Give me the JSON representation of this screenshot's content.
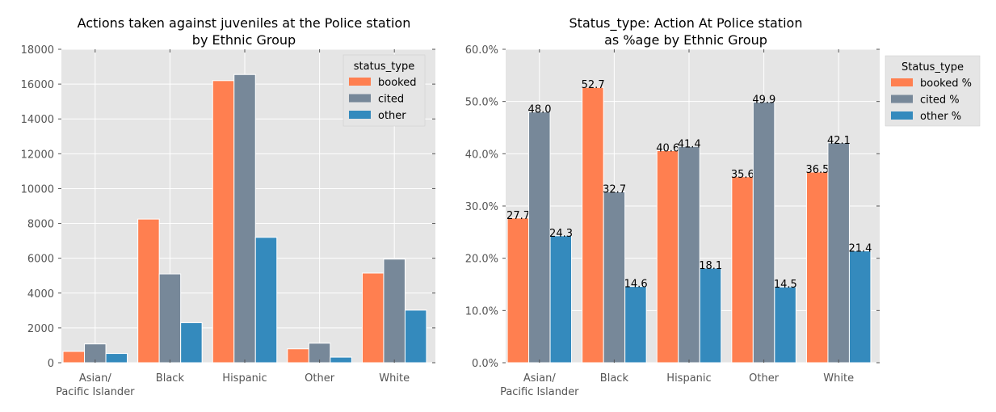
{
  "chart_data": [
    {
      "type": "bar",
      "title_lines": [
        "Actions taken against juveniles at the Police station",
        "by Ethnic Group"
      ],
      "categories": [
        "Asian/|Pacific Islander",
        "Black",
        "Hispanic",
        "Other",
        "White"
      ],
      "ylim": [
        0,
        18000
      ],
      "yticks": [
        "0",
        "2000",
        "4000",
        "6000",
        "8000",
        "10000",
        "12000",
        "14000",
        "16000",
        "18000"
      ],
      "ytick_values": [
        0,
        2000,
        4000,
        6000,
        8000,
        10000,
        12000,
        14000,
        16000,
        18000
      ],
      "legend_title": "status_type",
      "legend_position": "top-right",
      "grid": true,
      "series": [
        {
          "name": "booked",
          "color": "#FF7F50",
          "values": [
            650,
            8250,
            16200,
            800,
            5150
          ]
        },
        {
          "name": "cited",
          "color": "#778899",
          "values": [
            1080,
            5100,
            16550,
            1120,
            5950
          ]
        },
        {
          "name": "other",
          "color": "#348ABD",
          "values": [
            530,
            2300,
            7200,
            320,
            3020
          ]
        }
      ]
    },
    {
      "type": "bar",
      "title_lines": [
        "Status_type: Action At Police station",
        "as %age by Ethnic Group"
      ],
      "categories": [
        "Asian/|Pacific Islander",
        "Black",
        "Hispanic",
        "Other",
        "White"
      ],
      "ylim": [
        0,
        60
      ],
      "yticks": [
        "0.0%",
        "10.0%",
        "20.0%",
        "30.0%",
        "40.0%",
        "50.0%",
        "60.0%"
      ],
      "ytick_values": [
        0,
        10,
        20,
        30,
        40,
        50,
        60
      ],
      "legend_title": "Status_type",
      "legend_position": "outside-right",
      "grid": true,
      "series": [
        {
          "name": "booked %",
          "color": "#FF7F50",
          "values": [
            27.7,
            52.7,
            40.6,
            35.6,
            36.5
          ],
          "labels": [
            "27.7",
            "52.7",
            "40.6",
            "35.6",
            "36.5"
          ]
        },
        {
          "name": "cited %",
          "color": "#778899",
          "values": [
            48.0,
            32.7,
            41.4,
            49.9,
            42.1
          ],
          "labels": [
            "48.0",
            "32.7",
            "41.4",
            "49.9",
            "42.1"
          ]
        },
        {
          "name": "other %",
          "color": "#348ABD",
          "values": [
            24.3,
            14.6,
            18.1,
            14.5,
            21.4
          ],
          "labels": [
            "24.3",
            "14.6",
            "18.1",
            "14.5",
            "21.4"
          ]
        }
      ]
    }
  ]
}
